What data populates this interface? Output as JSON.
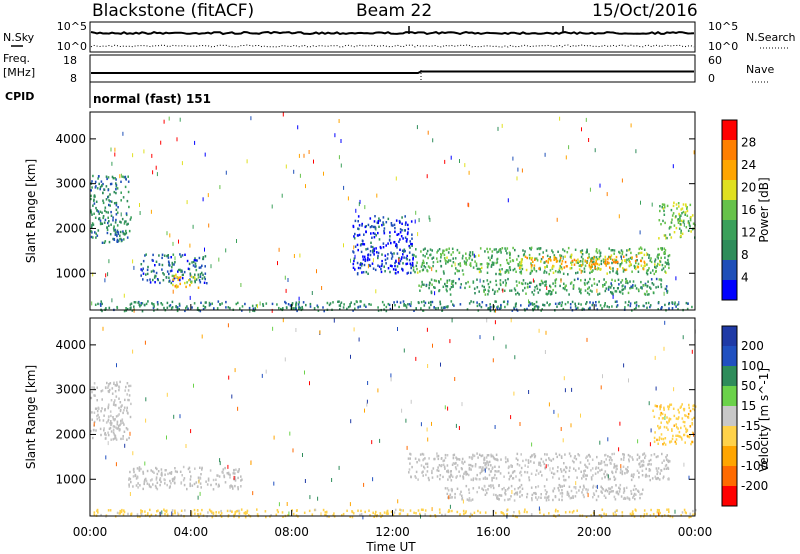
{
  "header": {
    "site": "Blackstone (fitACF)",
    "beam": "Beam 22",
    "date": "15/Oct/2016"
  },
  "summary_panels": {
    "nsky_label": "N.Sky",
    "nsearch_label": "N.Search",
    "noise_ticks_left": [
      "10^5",
      "10^0"
    ],
    "noise_ticks_right": [
      "10^5",
      "10^0"
    ],
    "freq_label": "Freq.",
    "freq_unit": "[MHz]",
    "freq_ticks": [
      "18",
      "8"
    ],
    "nave_label": "Nave",
    "nave_ticks": [
      "60",
      "0"
    ],
    "cpid_label": "CPID",
    "cpid_value": "normal (fast) 151"
  },
  "colors": {
    "power_scale": [
      "#0000ff",
      "#1f4fb8",
      "#2e8c5a",
      "#3aa05a",
      "#66c24a",
      "#e0e020",
      "#ffa500",
      "#ff7f00",
      "#ff0000"
    ],
    "velocity_scale": [
      "#1f3aa6",
      "#2050c0",
      "#2e8c5a",
      "#6bd24a",
      "#c8c8c8",
      "#ffd24a",
      "#ffa500",
      "#ff6a00",
      "#ff0000"
    ],
    "ground_scatter": "#bdbdbd"
  },
  "chart_data": [
    {
      "type": "heatmap",
      "name": "power",
      "xlabel": "Time UT",
      "ylabel": "Slant Range [km]",
      "colorbar_label": "Power [dB]",
      "colorbar_ticks": [
        "28",
        "24",
        "20",
        "16",
        "12",
        "8",
        "4"
      ],
      "x_ticks": [
        "00:00",
        "04:00",
        "08:00",
        "12:00",
        "16:00",
        "20:00",
        "00:00"
      ],
      "y_ticks": [
        "4000",
        "3000",
        "2000",
        "1000"
      ],
      "xlim_hours": [
        0,
        24
      ],
      "ylim_km": [
        180,
        4600
      ],
      "echo_regions": [
        {
          "t": [
            0.0,
            1.6
          ],
          "r": [
            1700,
            3200
          ],
          "power_db": 10
        },
        {
          "t": [
            2.0,
            4.6
          ],
          "r": [
            800,
            1450
          ],
          "power_db": 8
        },
        {
          "t": [
            3.2,
            4.3
          ],
          "r": [
            700,
            1000
          ],
          "power_db": 20
        },
        {
          "t": [
            10.4,
            12.8
          ],
          "r": [
            1000,
            2300
          ],
          "power_db": 6
        },
        {
          "t": [
            12.8,
            23.0
          ],
          "r": [
            1000,
            1600
          ],
          "power_db": 14
        },
        {
          "t": [
            17.0,
            22.0
          ],
          "r": [
            1100,
            1400
          ],
          "power_db": 22
        },
        {
          "t": [
            22.5,
            24.0
          ],
          "r": [
            1800,
            2600
          ],
          "power_db": 16
        },
        {
          "t": [
            13.0,
            23.0
          ],
          "r": [
            550,
            900
          ],
          "power_db": 12
        },
        {
          "t": [
            0.0,
            24.0
          ],
          "r": [
            180,
            400
          ],
          "power_db": 10
        }
      ]
    },
    {
      "type": "heatmap",
      "name": "velocity",
      "xlabel": "Time UT",
      "ylabel": "Slant Range [km]",
      "colorbar_label": "Velocity [m s^-1]",
      "colorbar_ticks": [
        "200",
        "100",
        "50",
        "15",
        "-15",
        "-50",
        "-100",
        "-200"
      ],
      "x_ticks": [
        "00:00",
        "04:00",
        "08:00",
        "12:00",
        "16:00",
        "20:00",
        "00:00"
      ],
      "y_ticks": [
        "4000",
        "3000",
        "2000",
        "1000"
      ],
      "xlim_hours": [
        0,
        24
      ],
      "ylim_km": [
        180,
        4600
      ],
      "echo_regions": [
        {
          "t": [
            0.0,
            1.6
          ],
          "r": [
            1900,
            3200
          ],
          "velocity_ms": 0
        },
        {
          "t": [
            1.5,
            6.0
          ],
          "r": [
            800,
            1300
          ],
          "velocity_ms": 0
        },
        {
          "t": [
            12.5,
            23.0
          ],
          "r": [
            1000,
            1600
          ],
          "velocity_ms": 0
        },
        {
          "t": [
            14.0,
            22.0
          ],
          "r": [
            550,
            900
          ],
          "velocity_ms": 0
        },
        {
          "t": [
            22.3,
            24.0
          ],
          "r": [
            1800,
            2700
          ],
          "velocity_ms": -60
        },
        {
          "t": [
            0.0,
            24.0
          ],
          "r": [
            180,
            350
          ],
          "velocity_ms": -40
        }
      ]
    }
  ]
}
